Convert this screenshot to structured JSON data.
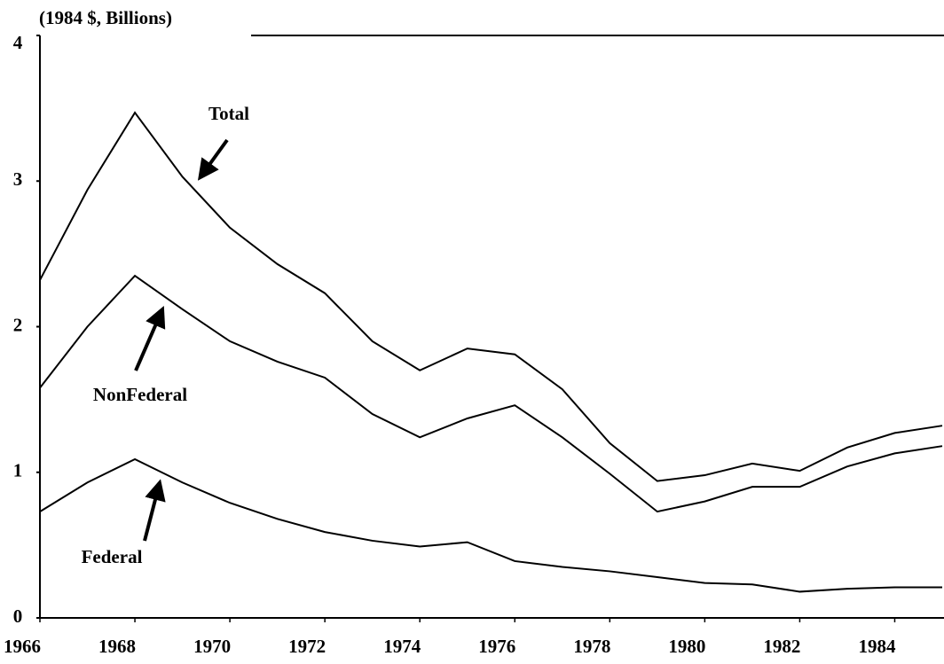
{
  "chart_data": {
    "type": "line",
    "ylabel": "(1984 $, Billions)",
    "x": [
      1966,
      1967,
      1968,
      1969,
      1970,
      1971,
      1972,
      1973,
      1974,
      1975,
      1976,
      1977,
      1978,
      1979,
      1980,
      1981,
      1982,
      1983,
      1984,
      1985
    ],
    "series": [
      {
        "name": "Total",
        "color": "#000000",
        "values": [
          2.32,
          2.94,
          3.47,
          3.03,
          2.68,
          2.43,
          2.23,
          1.9,
          1.7,
          1.85,
          1.81,
          1.57,
          1.2,
          0.94,
          0.98,
          1.06,
          1.01,
          1.17,
          1.27,
          1.32
        ]
      },
      {
        "name": "NonFederal",
        "color": "#000000",
        "values": [
          1.58,
          2.0,
          2.35,
          2.12,
          1.9,
          1.76,
          1.65,
          1.4,
          1.24,
          1.37,
          1.46,
          1.24,
          0.99,
          0.73,
          0.8,
          0.9,
          0.9,
          1.04,
          1.13,
          1.18
        ]
      },
      {
        "name": "Federal",
        "color": "#000000",
        "values": [
          0.73,
          0.93,
          1.09,
          0.93,
          0.79,
          0.68,
          0.59,
          0.53,
          0.49,
          0.52,
          0.39,
          0.35,
          0.32,
          0.28,
          0.24,
          0.23,
          0.18,
          0.2,
          0.21,
          0.21
        ]
      }
    ],
    "xlim": [
      1966,
      1985
    ],
    "xticks": [
      1966,
      1968,
      1970,
      1972,
      1974,
      1976,
      1978,
      1980,
      1982,
      1984
    ],
    "ylim": [
      0,
      4
    ],
    "yticks": [
      0,
      1,
      2,
      3,
      4
    ],
    "grid": false
  }
}
